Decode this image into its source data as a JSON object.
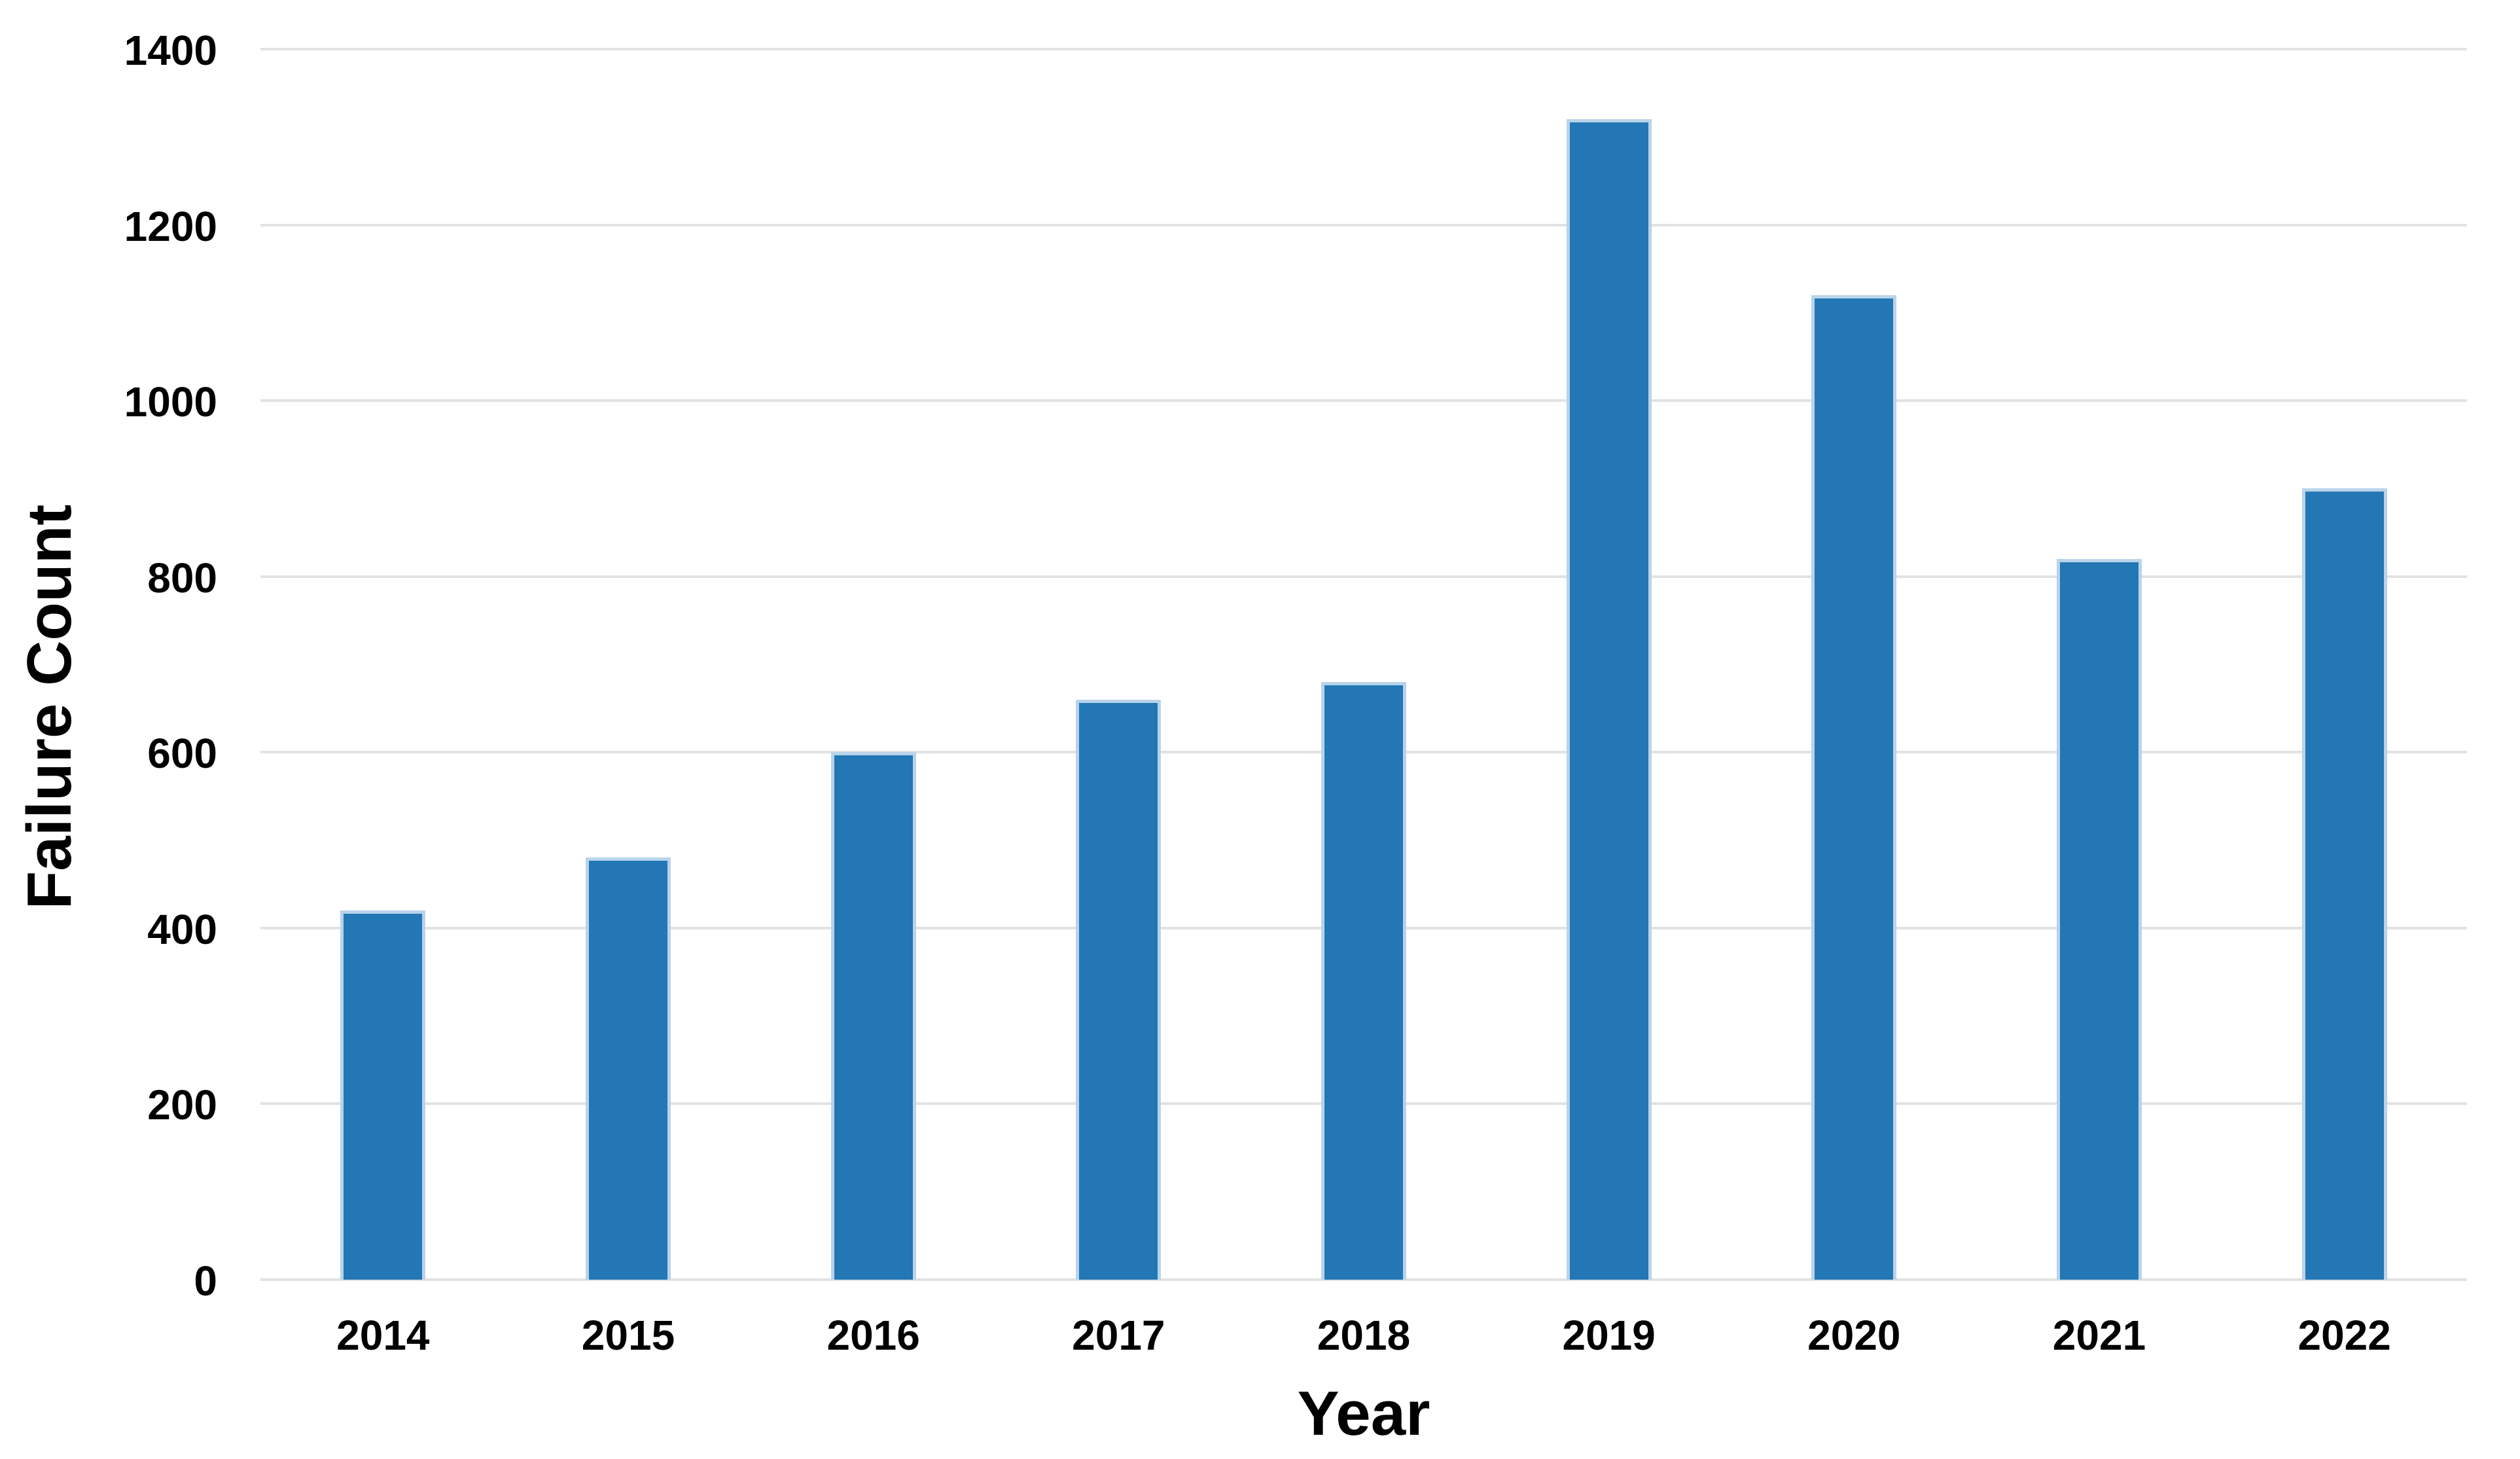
{
  "chart_data": {
    "type": "bar",
    "title": "",
    "categories": [
      "2014",
      "2015",
      "2016",
      "2017",
      "2018",
      "2019",
      "2020",
      "2021",
      "2022"
    ],
    "values": [
      420,
      480,
      600,
      660,
      680,
      1320,
      1120,
      820,
      900
    ],
    "xlabel": "Year",
    "ylabel": "Failure Count",
    "ylim": [
      0,
      1400
    ],
    "ytick_step": 200,
    "ytick_labels": [
      "0",
      "200",
      "400",
      "600",
      "800",
      "1000",
      "1200",
      "1400"
    ],
    "grid": "horizontal",
    "legend": "none",
    "bar_color": "#2277b4",
    "bar_edge_color": "#b9d3ea",
    "gridline_color": "#e2e2e2",
    "text_color": "#000000",
    "background_color": "#ffffff"
  }
}
